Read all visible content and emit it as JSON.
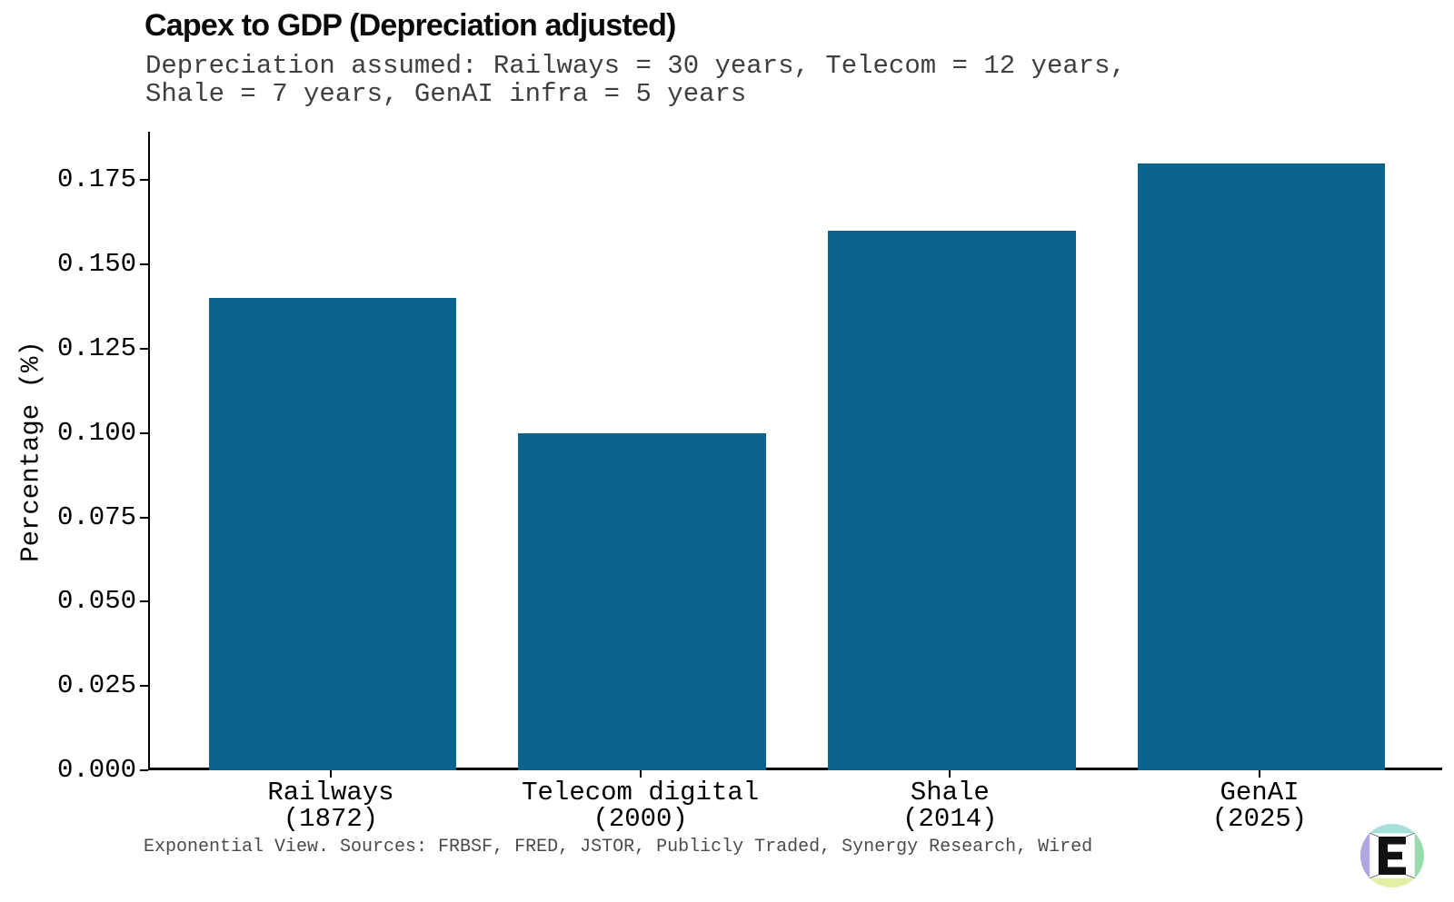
{
  "header": {
    "title": "Capex to GDP (Depreciation adjusted)",
    "subtitle": "Depreciation assumed: Railways = 30 years, Telecom = 12 years,\nShale = 7 years, GenAI infra = 5 years"
  },
  "footer": {
    "text": "Exponential View. Sources: FRBSF, FRED, JSTOR, Publicly Traded, Synergy Research, Wired"
  },
  "colors": {
    "bar": "#0a648c",
    "axis": "#000000",
    "title_text": "#0a0a0a",
    "subtitle_text": "#3f3f3f",
    "footer_text": "#4a4a4a",
    "logo_top": "#a5e0dc",
    "logo_left": "#aea7e0",
    "logo_right": "#99dcab",
    "logo_bottom": "#e3efa5",
    "logo_letter": "#111111",
    "logo_square": "#ffffff"
  },
  "logo": {
    "letter": "E"
  },
  "chart_data": {
    "type": "bar",
    "title": "Capex to GDP (Depreciation adjusted)",
    "subtitle": "Depreciation assumed: Railways = 30 years, Telecom = 12 years, Shale = 7 years, GenAI infra = 5 years",
    "categories": [
      "Railways\n(1872)",
      "Telecom digital\n(2000)",
      "Shale\n(2014)",
      "GenAI\n(2025)"
    ],
    "values": [
      0.14,
      0.1,
      0.16,
      0.18
    ],
    "xlabel": "",
    "ylabel": "Percentage (%)",
    "yticks": [
      0.0,
      0.025,
      0.05,
      0.075,
      0.1,
      0.125,
      0.15,
      0.175
    ],
    "ytick_labels": [
      "0.000",
      "0.025",
      "0.050",
      "0.075",
      "0.100",
      "0.125",
      "0.150",
      "0.175"
    ],
    "ylim": [
      0,
      0.1894
    ],
    "xlim": [
      -0.59,
      3.59
    ],
    "bar_width": 0.8,
    "grid": false,
    "legend": null
  }
}
